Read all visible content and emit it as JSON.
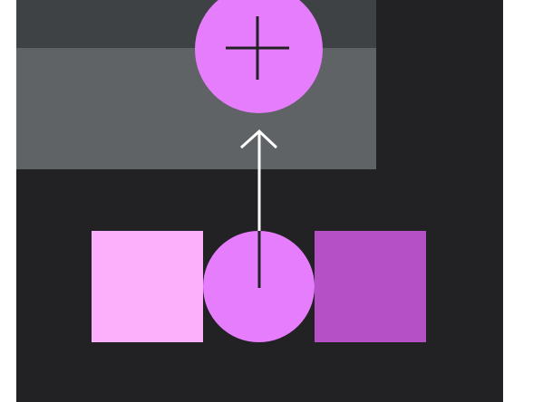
{
  "colors": {
    "page_background": "#ffffff",
    "canvas_background": "#222225",
    "band_top": "#3f4244",
    "band_middle": "#5f6366",
    "pink_light": "#fcb0fc",
    "pink": "#e67dfd",
    "purple": "#b550c7",
    "stroke_dark": "#222225",
    "stroke_light": "#ffffff"
  },
  "shapes": {
    "add_circle": {
      "icon": "plus-icon"
    },
    "left_square": {
      "fill": "pink_light"
    },
    "center_circle": {
      "fill": "pink"
    },
    "right_square": {
      "fill": "purple"
    },
    "connector": {
      "icon": "arrow-up-icon"
    }
  }
}
